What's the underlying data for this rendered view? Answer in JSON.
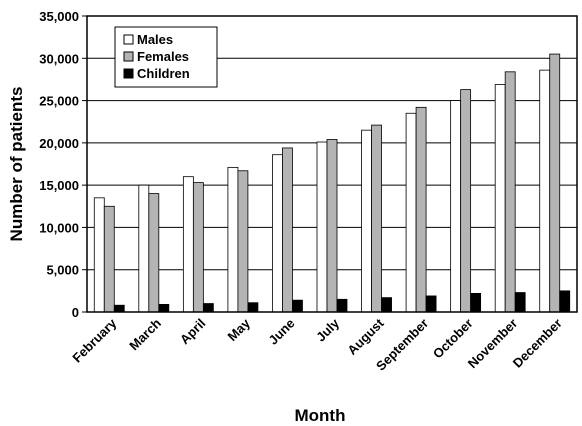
{
  "chart_data": {
    "type": "bar",
    "title": "",
    "xlabel": "Month",
    "ylabel": "Number of patients",
    "ylim": [
      0,
      35000
    ],
    "yticks": [
      0,
      5000,
      10000,
      15000,
      20000,
      25000,
      30000,
      35000
    ],
    "ytick_labels": [
      "0",
      "5,000",
      "10,000",
      "15,000",
      "20,000",
      "25,000",
      "30,000",
      "35,000"
    ],
    "grid": "horizontal",
    "legend_position": "top-left",
    "categories": [
      "February",
      "March",
      "April",
      "May",
      "June",
      "July",
      "August",
      "September",
      "October",
      "November",
      "December"
    ],
    "series": [
      {
        "name": "Males",
        "color": "#ffffff",
        "values": [
          13500,
          15000,
          16000,
          17100,
          18600,
          20100,
          21500,
          23500,
          25000,
          26900,
          28600
        ]
      },
      {
        "name": "Females",
        "color": "#b4b4b4",
        "values": [
          12500,
          14000,
          15300,
          16700,
          19400,
          20400,
          22100,
          24200,
          26300,
          28400,
          30500
        ]
      },
      {
        "name": "Children",
        "color": "#000000",
        "values": [
          800,
          900,
          1000,
          1100,
          1400,
          1500,
          1700,
          1900,
          2200,
          2300,
          2500
        ]
      }
    ]
  }
}
